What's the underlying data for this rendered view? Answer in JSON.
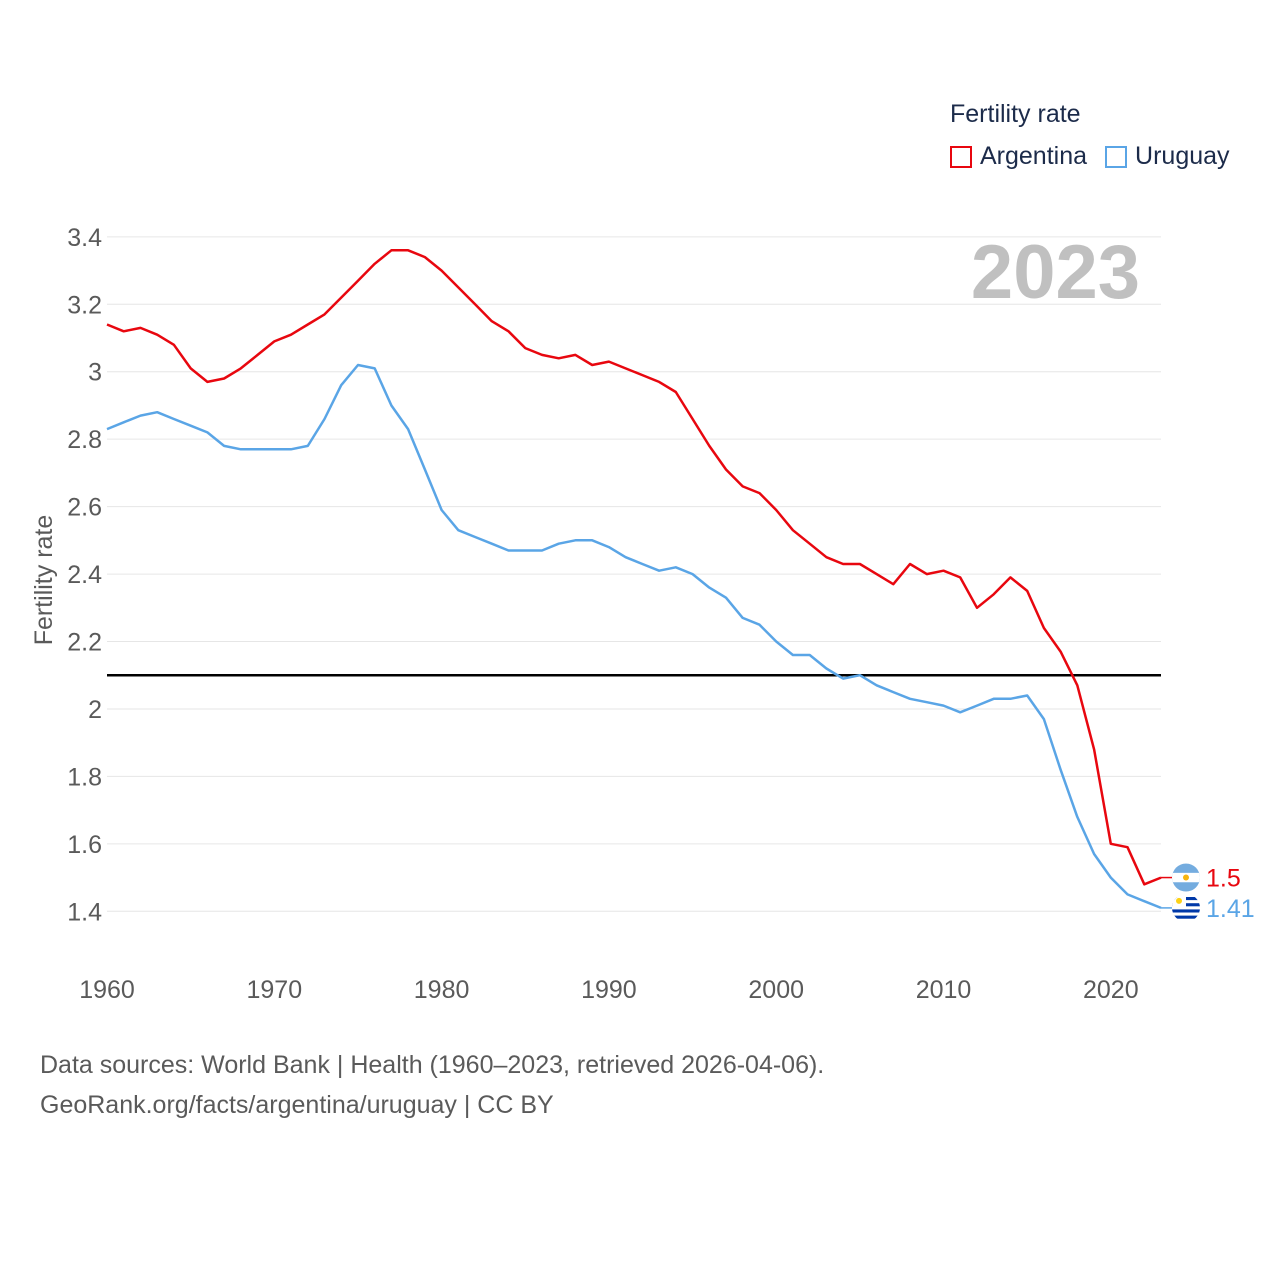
{
  "chart_data": {
    "type": "line",
    "title": "Fertility rate",
    "year_label": "2023",
    "ylabel": "Fertility rate",
    "xlabel": "",
    "xlim": [
      1960,
      2023
    ],
    "ylim": [
      1.3,
      3.45
    ],
    "x_ticks": [
      1960,
      1970,
      1980,
      1990,
      2000,
      2010,
      2020
    ],
    "y_ticks": [
      1.4,
      1.6,
      1.8,
      2,
      2.2,
      2.4,
      2.6,
      2.8,
      3,
      3.2,
      3.4
    ],
    "y_tick_labels": [
      "1.4",
      "1.6",
      "1.8",
      "2",
      "2.2",
      "2.4",
      "2.6",
      "2.8",
      "3",
      "3.2",
      "3.4"
    ],
    "x_tick_labels": [
      "1960",
      "1970",
      "1980",
      "1990",
      "2000",
      "2010",
      "2020"
    ],
    "reference_line": 2.1,
    "years": [
      1960,
      1961,
      1962,
      1963,
      1964,
      1965,
      1966,
      1967,
      1968,
      1969,
      1970,
      1971,
      1972,
      1973,
      1974,
      1975,
      1976,
      1977,
      1978,
      1979,
      1980,
      1981,
      1982,
      1983,
      1984,
      1985,
      1986,
      1987,
      1988,
      1989,
      1990,
      1991,
      1992,
      1993,
      1994,
      1995,
      1996,
      1997,
      1998,
      1999,
      2000,
      2001,
      2002,
      2003,
      2004,
      2005,
      2006,
      2007,
      2008,
      2009,
      2010,
      2011,
      2012,
      2013,
      2014,
      2015,
      2016,
      2017,
      2018,
      2019,
      2020,
      2021,
      2022,
      2023
    ],
    "series": [
      {
        "name": "Argentina",
        "color": "#e8070f",
        "end_label": "1.5",
        "values": [
          3.14,
          3.12,
          3.13,
          3.11,
          3.08,
          3.01,
          2.97,
          2.98,
          3.01,
          3.05,
          3.09,
          3.11,
          3.14,
          3.17,
          3.22,
          3.27,
          3.32,
          3.36,
          3.36,
          3.34,
          3.3,
          3.25,
          3.2,
          3.15,
          3.12,
          3.07,
          3.05,
          3.04,
          3.05,
          3.02,
          3.03,
          3.01,
          2.99,
          2.97,
          2.94,
          2.86,
          2.78,
          2.71,
          2.66,
          2.64,
          2.59,
          2.53,
          2.49,
          2.45,
          2.43,
          2.43,
          2.4,
          2.37,
          2.43,
          2.4,
          2.41,
          2.39,
          2.3,
          2.34,
          2.39,
          2.35,
          2.24,
          2.17,
          2.07,
          1.88,
          1.6,
          1.59,
          1.48,
          1.5
        ]
      },
      {
        "name": "Uruguay",
        "color": "#5aa5e6",
        "end_label": "1.41",
        "values": [
          2.83,
          2.85,
          2.87,
          2.88,
          2.86,
          2.84,
          2.82,
          2.78,
          2.77,
          2.77,
          2.77,
          2.77,
          2.78,
          2.86,
          2.96,
          3.02,
          3.01,
          2.9,
          2.83,
          2.71,
          2.59,
          2.53,
          2.51,
          2.49,
          2.47,
          2.47,
          2.47,
          2.49,
          2.5,
          2.5,
          2.48,
          2.45,
          2.43,
          2.41,
          2.42,
          2.4,
          2.36,
          2.33,
          2.27,
          2.25,
          2.2,
          2.16,
          2.16,
          2.12,
          2.09,
          2.1,
          2.07,
          2.05,
          2.03,
          2.02,
          2.01,
          1.99,
          2.01,
          2.03,
          2.03,
          2.04,
          1.97,
          1.82,
          1.68,
          1.57,
          1.5,
          1.45,
          1.43,
          1.41
        ]
      }
    ]
  },
  "legend": {
    "title": "Fertility rate",
    "items": [
      {
        "label": "Argentina",
        "color": "#e8070f"
      },
      {
        "label": "Uruguay",
        "color": "#5aa5e6"
      }
    ]
  },
  "source": {
    "line1": "Data sources: World Bank | Health (1960–2023, retrieved 2026-04-06).",
    "line2": "GeoRank.org/facts/argentina/uruguay | CC BY"
  }
}
